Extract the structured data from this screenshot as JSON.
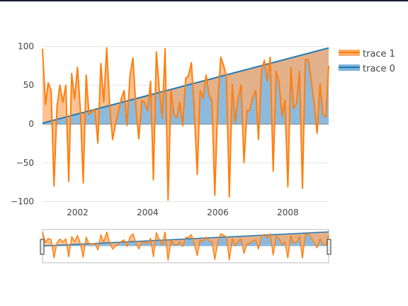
{
  "colors": {
    "top_line": "#1a1a3a",
    "trace0_line": "#1f77b4",
    "trace0_fill": "#7fb2d9",
    "trace1_line": "#ff7f0e",
    "trace1_fill": "#ffad6e",
    "grid": "#e5e5e5",
    "zero_line": "#444444"
  },
  "chart_data": {
    "type": "area",
    "xlim": [
      "2001-01-01",
      "2009-03-01"
    ],
    "ylim": [
      -105,
      105
    ],
    "x_ticks": [
      {
        "value": "2002-01-01",
        "label": "2002"
      },
      {
        "value": "2004-01-01",
        "label": "2004"
      },
      {
        "value": "2006-01-01",
        "label": "2006"
      },
      {
        "value": "2008-01-01",
        "label": "2008"
      }
    ],
    "y_ticks": [
      {
        "value": -100,
        "label": "−100"
      },
      {
        "value": -50,
        "label": "−50"
      },
      {
        "value": 0,
        "label": "0"
      },
      {
        "value": 50,
        "label": "50"
      },
      {
        "value": 100,
        "label": "100"
      }
    ],
    "grid": true,
    "legend": {
      "placement": "top-right",
      "order": [
        "trace 1",
        "trace 0"
      ]
    },
    "rangeslider": true,
    "series": [
      {
        "name": "trace 0",
        "fill": "tozeroy",
        "x": [
          "2001-01-01",
          "2009-03-01"
        ],
        "y": [
          1,
          98
        ]
      },
      {
        "name": "trace 1",
        "fill": "tonexty",
        "x": [
          "2001-01-01",
          "2001-02-01",
          "2001-03-01",
          "2001-04-01",
          "2001-05-01",
          "2001-06-01",
          "2001-07-01",
          "2001-08-01",
          "2001-09-01",
          "2001-10-01",
          "2001-11-01",
          "2001-12-01",
          "2002-01-01",
          "2002-02-01",
          "2002-03-01",
          "2002-04-01",
          "2002-05-01",
          "2002-06-01",
          "2002-07-01",
          "2002-08-01",
          "2002-09-01",
          "2002-10-01",
          "2002-11-01",
          "2002-12-01",
          "2003-01-01",
          "2003-02-01",
          "2003-03-01",
          "2003-04-01",
          "2003-05-01",
          "2003-06-01",
          "2003-07-01",
          "2003-08-01",
          "2003-09-01",
          "2003-10-01",
          "2003-11-01",
          "2003-12-01",
          "2004-01-01",
          "2004-02-01",
          "2004-03-01",
          "2004-04-01",
          "2004-05-01",
          "2004-06-01",
          "2004-07-01",
          "2004-08-01",
          "2004-09-01",
          "2004-10-01",
          "2004-11-01",
          "2004-12-01",
          "2005-01-01",
          "2005-02-01",
          "2005-03-01",
          "2005-04-01",
          "2005-05-01",
          "2005-06-01",
          "2005-07-01",
          "2005-08-01",
          "2005-09-01",
          "2005-10-01",
          "2005-11-01",
          "2005-12-01",
          "2006-01-01",
          "2006-02-01",
          "2006-03-01",
          "2006-04-01",
          "2006-05-01",
          "2006-06-01",
          "2006-07-01",
          "2006-08-01",
          "2006-09-01",
          "2006-10-01",
          "2006-11-01",
          "2006-12-01",
          "2007-01-01",
          "2007-02-01",
          "2007-03-01",
          "2007-04-01",
          "2007-05-01",
          "2007-06-01",
          "2007-07-01",
          "2007-08-01",
          "2007-09-01",
          "2007-10-01",
          "2007-11-01",
          "2007-12-01",
          "2008-01-01",
          "2008-02-01",
          "2008-03-01",
          "2008-04-01",
          "2008-05-01",
          "2008-06-01",
          "2008-07-01",
          "2008-08-01",
          "2008-09-01",
          "2008-10-01",
          "2008-11-01",
          "2008-12-01",
          "2009-01-01",
          "2009-02-01",
          "2009-03-01"
        ],
        "y": [
          97,
          25,
          53,
          43,
          -80,
          22,
          50,
          28,
          50,
          -74,
          65,
          32,
          73,
          15,
          -76,
          63,
          12,
          17,
          18,
          -25,
          78,
          28,
          98,
          26,
          -20,
          0,
          15,
          32,
          43,
          -2,
          62,
          85,
          22,
          -19,
          30,
          28,
          17,
          55,
          -72,
          93,
          45,
          8,
          97,
          -98,
          43,
          12,
          8,
          28,
          -2,
          59,
          62,
          79,
          18,
          -65,
          43,
          33,
          63,
          38,
          30,
          -92,
          27,
          86,
          76,
          62,
          -94,
          51,
          2,
          33,
          50,
          -50,
          17,
          18,
          35,
          43,
          -20,
          68,
          82,
          55,
          86,
          -61,
          68,
          53,
          10,
          31,
          -81,
          73,
          20,
          27,
          68,
          -83,
          83,
          83,
          55,
          26,
          -12,
          52,
          12,
          9,
          75
        ]
      }
    ]
  }
}
